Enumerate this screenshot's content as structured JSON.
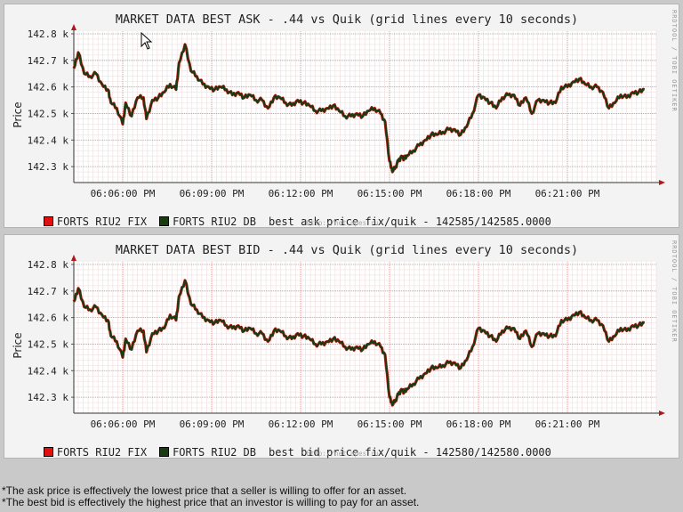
{
  "panels": [
    {
      "id": "ask",
      "title": "MARKET DATA BEST ASK - .44 vs Quik (grid lines every 10 seconds)",
      "ylabel": "Price",
      "side_text": "RRDTOOL / TOBI OETIKER",
      "watermark": "http://net.opes.ru",
      "legend": [
        {
          "label": "FORTS RIU2 FIX",
          "color": "#e01010"
        },
        {
          "label": "FORTS RIU2 DB",
          "color": "#1a3a12"
        }
      ],
      "legend_note": "best ask price fix/quik - 142585/142585.0000"
    },
    {
      "id": "bid",
      "title": "MARKET DATA BEST BID - .44 vs Quik (grid lines every 10 seconds)",
      "ylabel": "Price",
      "side_text": "RRDTOOL / TOBI OETIKER",
      "watermark": "http://net.opes.ru",
      "legend": [
        {
          "label": "FORTS RIU2 FIX",
          "color": "#e01010"
        },
        {
          "label": "FORTS RIU2 DB",
          "color": "#1a3a12"
        }
      ],
      "legend_note": "best bid price fix/quik - 142580/142580.0000"
    }
  ],
  "notes": [
    "*The ask price is effectively the lowest price that a seller is willing to offer for an asset.",
    "*The best bid is effectively the highest price that an investor is willing to pay for an asset."
  ],
  "chart_data": [
    {
      "type": "line",
      "title": "MARKET DATA BEST ASK - .44 vs Quik (grid lines every 10 seconds)",
      "ylabel": "Price",
      "yticks": [
        "142.3 k",
        "142.4 k",
        "142.5 k",
        "142.6 k",
        "142.7 k",
        "142.8 k"
      ],
      "ytick_values": [
        142300,
        142400,
        142500,
        142600,
        142700,
        142800
      ],
      "xticks": [
        "06:06:00 PM",
        "06:09:00 PM",
        "06:12:00 PM",
        "06:15:00 PM",
        "06:18:00 PM",
        "06:21:00 PM"
      ],
      "xtick_minutes": [
        6,
        9,
        12,
        15,
        18,
        21
      ],
      "xlim_minutes": [
        4.35,
        24.0
      ],
      "ylim": [
        142240,
        142810
      ],
      "grid": true,
      "legend_position": "bottom",
      "series": [
        {
          "name": "FORTS RIU2 FIX",
          "color": "#e01010"
        },
        {
          "name": "FORTS RIU2 DB",
          "color": "#1a3a12"
        }
      ],
      "x_minutes": [
        4.35,
        4.5,
        4.7,
        4.9,
        5.1,
        5.3,
        5.5,
        5.6,
        5.8,
        6.0,
        6.1,
        6.3,
        6.5,
        6.7,
        6.8,
        7.0,
        7.2,
        7.4,
        7.6,
        7.8,
        7.9,
        8.1,
        8.3,
        8.5,
        8.7,
        8.9,
        9.1,
        9.3,
        9.5,
        9.7,
        9.9,
        10.1,
        10.3,
        10.5,
        10.7,
        10.9,
        11.1,
        11.3,
        11.5,
        11.7,
        11.9,
        12.1,
        12.3,
        12.5,
        12.7,
        12.9,
        13.1,
        13.3,
        13.5,
        13.7,
        13.9,
        14.1,
        14.3,
        14.5,
        14.7,
        14.85,
        15.0,
        15.1,
        15.2,
        15.3,
        15.4,
        15.5,
        15.6,
        15.8,
        16.0,
        16.2,
        16.4,
        16.6,
        16.8,
        17.0,
        17.2,
        17.4,
        17.6,
        17.8,
        18.0,
        18.2,
        18.4,
        18.6,
        18.8,
        19.0,
        19.2,
        19.4,
        19.6,
        19.8,
        20.0,
        20.2,
        20.4,
        20.6,
        20.8,
        21.0,
        21.2,
        21.4,
        21.6,
        21.8,
        22.0,
        22.2,
        22.4,
        22.6,
        22.8,
        23.0,
        23.2,
        23.4,
        23.6
      ],
      "values": [
        142670,
        142730,
        142650,
        142640,
        142650,
        142610,
        142590,
        142540,
        142520,
        142460,
        142540,
        142490,
        142560,
        142560,
        142480,
        142550,
        142560,
        142580,
        142610,
        142590,
        142690,
        142760,
        142660,
        142640,
        142610,
        142600,
        142590,
        142600,
        142590,
        142570,
        142580,
        142560,
        142570,
        142550,
        142550,
        142520,
        142560,
        142560,
        142540,
        142530,
        142550,
        142540,
        142530,
        142510,
        142510,
        142520,
        142530,
        142510,
        142490,
        142490,
        142500,
        142490,
        142510,
        142520,
        142500,
        142470,
        142320,
        142280,
        142300,
        142320,
        142340,
        142330,
        142340,
        142360,
        142380,
        142400,
        142420,
        142420,
        142430,
        142440,
        142440,
        142420,
        142450,
        142500,
        142570,
        142560,
        142540,
        142520,
        142560,
        142570,
        142570,
        142530,
        142560,
        142500,
        142550,
        142550,
        142540,
        142540,
        142600,
        142600,
        142620,
        142630,
        142610,
        142600,
        142600,
        142580,
        142520,
        142540,
        142570,
        142560,
        142580,
        142580,
        142590
      ]
    },
    {
      "type": "line",
      "title": "MARKET DATA BEST BID - .44 vs Quik (grid lines every 10 seconds)",
      "ylabel": "Price",
      "yticks": [
        "142.3 k",
        "142.4 k",
        "142.5 k",
        "142.6 k",
        "142.7 k",
        "142.8 k"
      ],
      "ytick_values": [
        142300,
        142400,
        142500,
        142600,
        142700,
        142800
      ],
      "xticks": [
        "06:06:00 PM",
        "06:09:00 PM",
        "06:12:00 PM",
        "06:15:00 PM",
        "06:18:00 PM",
        "06:21:00 PM"
      ],
      "xtick_minutes": [
        6,
        9,
        12,
        15,
        18,
        21
      ],
      "xlim_minutes": [
        4.35,
        24.0
      ],
      "ylim": [
        142240,
        142810
      ],
      "grid": true,
      "legend_position": "bottom",
      "series": [
        {
          "name": "FORTS RIU2 FIX",
          "color": "#e01010"
        },
        {
          "name": "FORTS RIU2 DB",
          "color": "#1a3a12"
        }
      ],
      "x_minutes": [
        4.35,
        4.5,
        4.7,
        4.9,
        5.1,
        5.3,
        5.5,
        5.6,
        5.8,
        6.0,
        6.1,
        6.3,
        6.5,
        6.7,
        6.8,
        7.0,
        7.2,
        7.4,
        7.6,
        7.8,
        7.9,
        8.1,
        8.3,
        8.5,
        8.7,
        8.9,
        9.1,
        9.3,
        9.5,
        9.7,
        9.9,
        10.1,
        10.3,
        10.5,
        10.7,
        10.9,
        11.1,
        11.3,
        11.5,
        11.7,
        11.9,
        12.1,
        12.3,
        12.5,
        12.7,
        12.9,
        13.1,
        13.3,
        13.5,
        13.7,
        13.9,
        14.1,
        14.3,
        14.5,
        14.7,
        14.85,
        15.0,
        15.1,
        15.2,
        15.3,
        15.4,
        15.5,
        15.6,
        15.8,
        16.0,
        16.2,
        16.4,
        16.6,
        16.8,
        17.0,
        17.2,
        17.4,
        17.6,
        17.8,
        18.0,
        18.2,
        18.4,
        18.6,
        18.8,
        19.0,
        19.2,
        19.4,
        19.6,
        19.8,
        20.0,
        20.2,
        20.4,
        20.6,
        20.8,
        21.0,
        21.2,
        21.4,
        21.6,
        21.8,
        22.0,
        22.2,
        22.4,
        22.6,
        22.8,
        23.0,
        23.2,
        23.4,
        23.6
      ],
      "values": [
        142660,
        142710,
        142640,
        142630,
        142640,
        142610,
        142590,
        142530,
        142510,
        142450,
        142520,
        142480,
        142550,
        142550,
        142470,
        142540,
        142550,
        142560,
        142610,
        142590,
        142680,
        142740,
        142650,
        142630,
        142600,
        142590,
        142580,
        142590,
        142570,
        142560,
        142570,
        142550,
        142560,
        142540,
        142540,
        142510,
        142550,
        142550,
        142530,
        142520,
        142540,
        142530,
        142520,
        142500,
        142500,
        142510,
        142520,
        142510,
        142490,
        142480,
        142490,
        142480,
        142500,
        142510,
        142490,
        142460,
        142300,
        142270,
        142290,
        142310,
        142330,
        142320,
        142330,
        142350,
        142370,
        142390,
        142410,
        142410,
        142420,
        142430,
        142430,
        142410,
        142440,
        142490,
        142560,
        142550,
        142530,
        142510,
        142550,
        142560,
        142560,
        142520,
        142550,
        142490,
        142540,
        142540,
        142530,
        142530,
        142590,
        142590,
        142610,
        142620,
        142600,
        142590,
        142590,
        142570,
        142510,
        142530,
        142560,
        142550,
        142570,
        142570,
        142580
      ]
    }
  ]
}
